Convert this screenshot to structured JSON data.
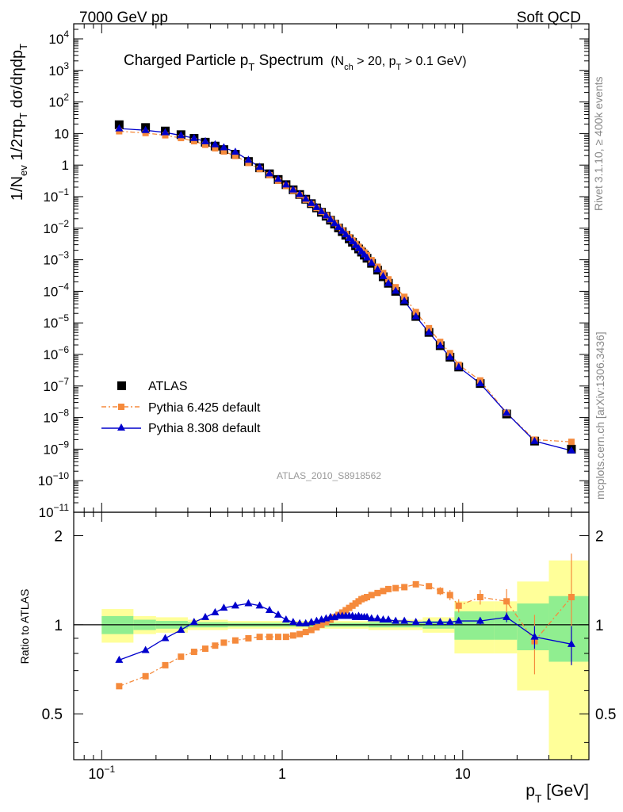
{
  "header": {
    "left": "7000 GeV pp",
    "right": "Soft QCD"
  },
  "side": {
    "rivet": "Rivet 3.1.10, ≥ 400k events",
    "mcplots": "mcplots.cern.ch [arXiv:1306.3436]"
  },
  "analysis_id": "ATLAS_2010_S8918562",
  "title": {
    "main": "Charged Particle p",
    "main_sub": "T",
    "main_after": " Spectrum",
    "cond_open": "(N",
    "cond_ch": "ch",
    "cond_mid": " > 20, p",
    "cond_t": "T",
    "cond_close": " > 0.1 GeV)"
  },
  "labels": {
    "ylabel_main": "1/N_ev 1/2πp_T dσ/dηdp_T",
    "ylabel_ratio": "Ratio to ATLAS",
    "xlabel": "p_T [GeV]"
  },
  "legend": [
    "ATLAS",
    "Pythia 6.425 default",
    "Pythia 8.308 default"
  ],
  "colors": {
    "atlas": "#000000",
    "py6": "#f58a3c",
    "py8": "#0000cc",
    "band_inner": "#90ee90",
    "band_outer": "#ffff99"
  },
  "chart_data": [
    {
      "type": "scatter",
      "x_scale": "log",
      "y_scale": "log",
      "xlim": [
        0.07,
        50
      ],
      "ylim": [
        1e-11,
        30000
      ],
      "y_ticks": [
        "10^{-11}",
        "10^{-10}",
        "10^{-9}",
        "10^{-8}",
        "10^{-7}",
        "10^{-6}",
        "10^{-5}",
        "10^{-4}",
        "10^{-3}",
        "10^{-2}",
        "10^{-1}",
        "1",
        "10",
        "10^{2}",
        "10^{3}",
        "10^{4}"
      ],
      "x": [
        0.125,
        0.175,
        0.225,
        0.275,
        0.325,
        0.375,
        0.425,
        0.475,
        0.55,
        0.65,
        0.75,
        0.85,
        0.95,
        1.05,
        1.15,
        1.25,
        1.35,
        1.45,
        1.55,
        1.65,
        1.75,
        1.85,
        1.95,
        2.05,
        2.15,
        2.25,
        2.35,
        2.45,
        2.55,
        2.65,
        2.75,
        2.85,
        2.95,
        3.125,
        3.375,
        3.625,
        3.875,
        4.25,
        4.75,
        5.5,
        6.5,
        7.5,
        8.5,
        9.5,
        12.5,
        17.5,
        25,
        40
      ],
      "series": [
        {
          "name": "ATLAS",
          "values": [
            19,
            15.5,
            12,
            9.2,
            7,
            5.3,
            4.0,
            3.1,
            2.2,
            1.3,
            0.82,
            0.53,
            0.35,
            0.24,
            0.165,
            0.117,
            0.083,
            0.06,
            0.044,
            0.032,
            0.024,
            0.018,
            0.0135,
            0.0102,
            0.0078,
            0.006,
            0.0046,
            0.0036,
            0.0028,
            0.0022,
            0.00175,
            0.0014,
            0.00112,
            0.00077,
            0.00047,
            0.00029,
            0.00018,
            0.0001,
            4.9e-05,
            1.6e-05,
            5e-06,
            1.9e-06,
            8.2e-07,
            4e-07,
            1.2e-07,
            1.3e-08,
            1.8e-09,
            1e-09
          ]
        },
        {
          "name": "Pythia 6.425 default",
          "values": [
            11.8,
            10.4,
            8.8,
            7.2,
            5.7,
            4.4,
            3.4,
            2.7,
            1.95,
            1.17,
            0.75,
            0.48,
            0.32,
            0.22,
            0.155,
            0.111,
            0.08,
            0.059,
            0.044,
            0.033,
            0.025,
            0.019,
            0.0145,
            0.011,
            0.0085,
            0.0066,
            0.0052,
            0.0041,
            0.0032,
            0.0026,
            0.0021,
            0.0017,
            0.00138,
            0.00097,
            0.0006,
            0.00038,
            0.00024,
            0.000135,
            6.7e-05,
            2.2e-05,
            6.8e-06,
            2.5e-06,
            1.1e-06,
            4.7e-07,
            1.5e-07,
            1.4e-08,
            2e-09,
            1.7e-09
          ]
        },
        {
          "name": "Pythia 8.308 default",
          "values": [
            14.4,
            12.7,
            10.8,
            8.7,
            7.1,
            5.6,
            4.5,
            3.6,
            2.6,
            1.45,
            0.87,
            0.54,
            0.36,
            0.24,
            0.166,
            0.119,
            0.085,
            0.062,
            0.046,
            0.034,
            0.025,
            0.019,
            0.0142,
            0.0108,
            0.0082,
            0.0063,
            0.0048,
            0.0038,
            0.0029,
            0.0023,
            0.0018,
            0.00145,
            0.00116,
            0.0008,
            0.00049,
            0.0003,
            0.00018,
            0.000103,
            5e-05,
            1.6e-05,
            5e-06,
            1.9e-06,
            8.3e-07,
            4e-07,
            1.2e-07,
            1.4e-08,
            1.8e-09,
            9e-10
          ]
        }
      ]
    },
    {
      "type": "line",
      "x_scale": "log",
      "y_scale": "log",
      "xlim": [
        0.07,
        50
      ],
      "ylim": [
        0.35,
        2.4
      ],
      "y_ticks": [
        0.5,
        1,
        2
      ],
      "x_ticks": [
        "10^{-1}",
        "1",
        "10"
      ],
      "ratio_x": [
        0.125,
        0.175,
        0.225,
        0.275,
        0.325,
        0.375,
        0.425,
        0.475,
        0.55,
        0.65,
        0.75,
        0.85,
        0.95,
        1.05,
        1.15,
        1.25,
        1.35,
        1.45,
        1.55,
        1.65,
        1.75,
        1.85,
        1.95,
        2.05,
        2.15,
        2.25,
        2.35,
        2.45,
        2.55,
        2.65,
        2.75,
        2.85,
        2.95,
        3.125,
        3.375,
        3.625,
        3.875,
        4.25,
        4.75,
        5.5,
        6.5,
        7.5,
        8.5,
        9.5,
        12.5,
        17.5,
        25,
        40
      ],
      "series": [
        {
          "name": "Pythia 6.425 default",
          "values": [
            0.62,
            0.67,
            0.73,
            0.78,
            0.81,
            0.83,
            0.85,
            0.87,
            0.885,
            0.9,
            0.91,
            0.91,
            0.91,
            0.91,
            0.92,
            0.93,
            0.945,
            0.96,
            0.98,
            1.0,
            1.02,
            1.04,
            1.06,
            1.08,
            1.1,
            1.12,
            1.14,
            1.16,
            1.18,
            1.2,
            1.22,
            1.23,
            1.24,
            1.26,
            1.28,
            1.3,
            1.32,
            1.33,
            1.34,
            1.37,
            1.35,
            1.3,
            1.26,
            1.16,
            1.24,
            1.2,
            0.88,
            1.24
          ]
        },
        {
          "name": "Pythia 8.308 default",
          "values": [
            0.76,
            0.82,
            0.9,
            0.96,
            1.02,
            1.06,
            1.1,
            1.14,
            1.16,
            1.18,
            1.16,
            1.12,
            1.08,
            1.04,
            1.02,
            1.01,
            1.01,
            1.02,
            1.03,
            1.04,
            1.05,
            1.06,
            1.06,
            1.07,
            1.07,
            1.07,
            1.07,
            1.07,
            1.06,
            1.07,
            1.06,
            1.06,
            1.06,
            1.05,
            1.05,
            1.04,
            1.04,
            1.03,
            1.03,
            1.02,
            1.02,
            1.02,
            1.02,
            1.03,
            1.03,
            1.06,
            0.91,
            0.86
          ]
        }
      ],
      "errors_py6": [
        0.01,
        0.01,
        0.01,
        0.01,
        0.01,
        0.01,
        0.01,
        0.01,
        0.01,
        0.01,
        0.01,
        0.01,
        0.01,
        0.01,
        0.01,
        0.01,
        0.01,
        0.01,
        0.01,
        0.01,
        0.01,
        0.01,
        0.01,
        0.01,
        0.01,
        0.01,
        0.01,
        0.01,
        0.01,
        0.01,
        0.01,
        0.01,
        0.01,
        0.01,
        0.01,
        0.01,
        0.01,
        0.01,
        0.02,
        0.02,
        0.03,
        0.04,
        0.05,
        0.06,
        0.07,
        0.12,
        0.2,
        0.5
      ],
      "errors_py8": [
        0.01,
        0.01,
        0.01,
        0.01,
        0.01,
        0.01,
        0.01,
        0.01,
        0.01,
        0.01,
        0.01,
        0.01,
        0.01,
        0.01,
        0.01,
        0.01,
        0.01,
        0.01,
        0.01,
        0.01,
        0.01,
        0.01,
        0.01,
        0.01,
        0.01,
        0.01,
        0.01,
        0.01,
        0.01,
        0.01,
        0.01,
        0.01,
        0.01,
        0.01,
        0.01,
        0.01,
        0.01,
        0.01,
        0.01,
        0.01,
        0.01,
        0.02,
        0.02,
        0.02,
        0.03,
        0.04,
        0.08,
        0.13
      ],
      "bands": [
        {
          "x0": 0.1,
          "x1": 0.15,
          "inner": [
            0.93,
            1.07
          ],
          "outer": [
            0.87,
            1.13
          ]
        },
        {
          "x0": 0.15,
          "x1": 0.2,
          "inner": [
            0.96,
            1.04
          ],
          "outer": [
            0.93,
            1.07
          ]
        },
        {
          "x0": 0.2,
          "x1": 0.3,
          "inner": [
            0.97,
            1.03
          ],
          "outer": [
            0.94,
            1.06
          ]
        },
        {
          "x0": 0.3,
          "x1": 0.5,
          "inner": [
            0.98,
            1.02
          ],
          "outer": [
            0.96,
            1.04
          ]
        },
        {
          "x0": 0.5,
          "x1": 3.0,
          "inner": [
            0.985,
            1.015
          ],
          "outer": [
            0.97,
            1.03
          ]
        },
        {
          "x0": 3.0,
          "x1": 6.0,
          "inner": [
            0.98,
            1.02
          ],
          "outer": [
            0.96,
            1.04
          ]
        },
        {
          "x0": 6.0,
          "x1": 9.0,
          "inner": [
            0.97,
            1.03
          ],
          "outer": [
            0.94,
            1.06
          ]
        },
        {
          "x0": 9.0,
          "x1": 15.0,
          "inner": [
            0.89,
            1.11
          ],
          "outer": [
            0.8,
            1.2
          ]
        },
        {
          "x0": 15.0,
          "x1": 20.0,
          "inner": [
            0.89,
            1.11
          ],
          "outer": [
            0.8,
            1.2
          ]
        },
        {
          "x0": 20.0,
          "x1": 30.0,
          "inner": [
            0.82,
            1.18
          ],
          "outer": [
            0.6,
            1.4
          ]
        },
        {
          "x0": 30.0,
          "x1": 50.0,
          "inner": [
            0.75,
            1.25
          ],
          "outer": [
            0.35,
            1.65
          ]
        }
      ]
    }
  ]
}
